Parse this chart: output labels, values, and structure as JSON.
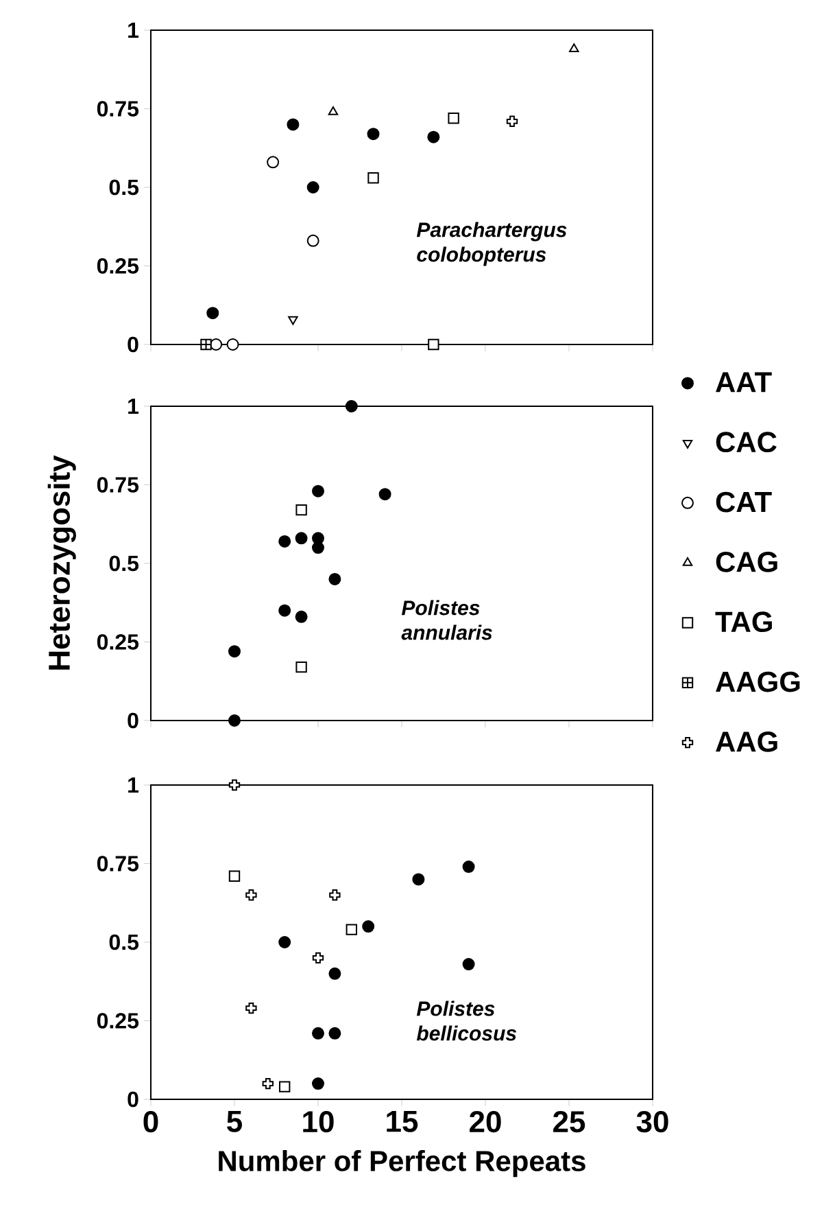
{
  "chart_data": [
    {
      "type": "scatter",
      "xlim": [
        0,
        30
      ],
      "ylim": [
        0,
        1
      ],
      "xticks": [
        0,
        5,
        10,
        15,
        20,
        25,
        30
      ],
      "yticks": [
        0,
        0.25,
        0.5,
        0.75,
        1
      ],
      "tick_labels": "y",
      "legend": "right",
      "annotations": [
        "Parachartergus colobopterus"
      ],
      "series": [
        {
          "name": "AAT",
          "color": "#000000",
          "marker": "circle",
          "x": [
            3.7,
            8.5,
            9.7,
            13.3,
            16.9
          ],
          "values": [
            0.1,
            0.7,
            0.5,
            0.67,
            0.66
          ]
        },
        {
          "name": "CAC",
          "color": "#000000",
          "marker": "triangle-down",
          "x": [
            8.5
          ],
          "values": [
            0.08
          ]
        },
        {
          "name": "CAT",
          "color": "#000000",
          "marker": "circle-open",
          "x": [
            7.3,
            9.7,
            3.9,
            4.9
          ],
          "values": [
            0.58,
            0.33,
            0,
            0
          ]
        },
        {
          "name": "CAG",
          "color": "#000000",
          "marker": "triangle",
          "x": [
            10.9,
            25.3
          ],
          "values": [
            0.74,
            0.94
          ]
        },
        {
          "name": "TAG",
          "color": "#000000",
          "marker": "square",
          "x": [
            13.3,
            18.1,
            16.9
          ],
          "values": [
            0.53,
            0.72,
            0
          ]
        },
        {
          "name": "AAGG",
          "color": "#000000",
          "marker": "square-plus",
          "x": [
            3.3
          ],
          "values": [
            0
          ]
        },
        {
          "name": "AAG",
          "color": "#000000",
          "marker": "cross",
          "x": [
            21.6
          ],
          "values": [
            0.71
          ]
        }
      ]
    },
    {
      "type": "scatter",
      "xlim": [
        0,
        30
      ],
      "ylim": [
        0,
        1
      ],
      "xticks": [
        0,
        5,
        10,
        15,
        20,
        25,
        30
      ],
      "yticks": [
        0,
        0.25,
        0.5,
        0.75,
        1
      ],
      "tick_labels": "y",
      "ylabel": "Heterozygosity",
      "annotations": [
        "Polistes annularis"
      ],
      "series": [
        {
          "color": "#000000",
          "marker": "circle",
          "x": [
            5,
            5,
            12,
            10,
            14,
            8,
            9,
            10,
            10,
            11,
            8,
            9
          ],
          "values": [
            0.22,
            0,
            1,
            0.73,
            0.72,
            0.57,
            0.58,
            0.58,
            0.55,
            0.45,
            0.35,
            0.33
          ]
        },
        {
          "color": "#000000",
          "marker": "square",
          "x": [
            9,
            9
          ],
          "values": [
            0.67,
            0.17
          ]
        }
      ]
    },
    {
      "type": "scatter",
      "xlim": [
        0,
        30
      ],
      "ylim": [
        0,
        1
      ],
      "xticks": [
        0,
        5,
        10,
        15,
        20,
        25,
        30
      ],
      "yticks": [
        0,
        0.25,
        0.5,
        0.75,
        1
      ],
      "xlabel": "Number of Perfect Repeats",
      "annotations": [
        "Polistes bellicosus"
      ],
      "series": [
        {
          "color": "#000000",
          "marker": "circle",
          "x": [
            8,
            13,
            16,
            19,
            19,
            11,
            10,
            11,
            10
          ],
          "values": [
            0.5,
            0.55,
            0.7,
            0.74,
            0.43,
            0.4,
            0.21,
            0.21,
            0.05
          ]
        },
        {
          "color": "#000000",
          "marker": "square",
          "x": [
            5,
            12,
            8
          ],
          "values": [
            0.71,
            0.54,
            0.04
          ]
        },
        {
          "color": "#000000",
          "marker": "cross",
          "x": [
            5,
            6,
            11,
            10,
            6,
            7
          ],
          "values": [
            1,
            0.65,
            0.65,
            0.45,
            0.29,
            0.05
          ]
        }
      ]
    }
  ]
}
